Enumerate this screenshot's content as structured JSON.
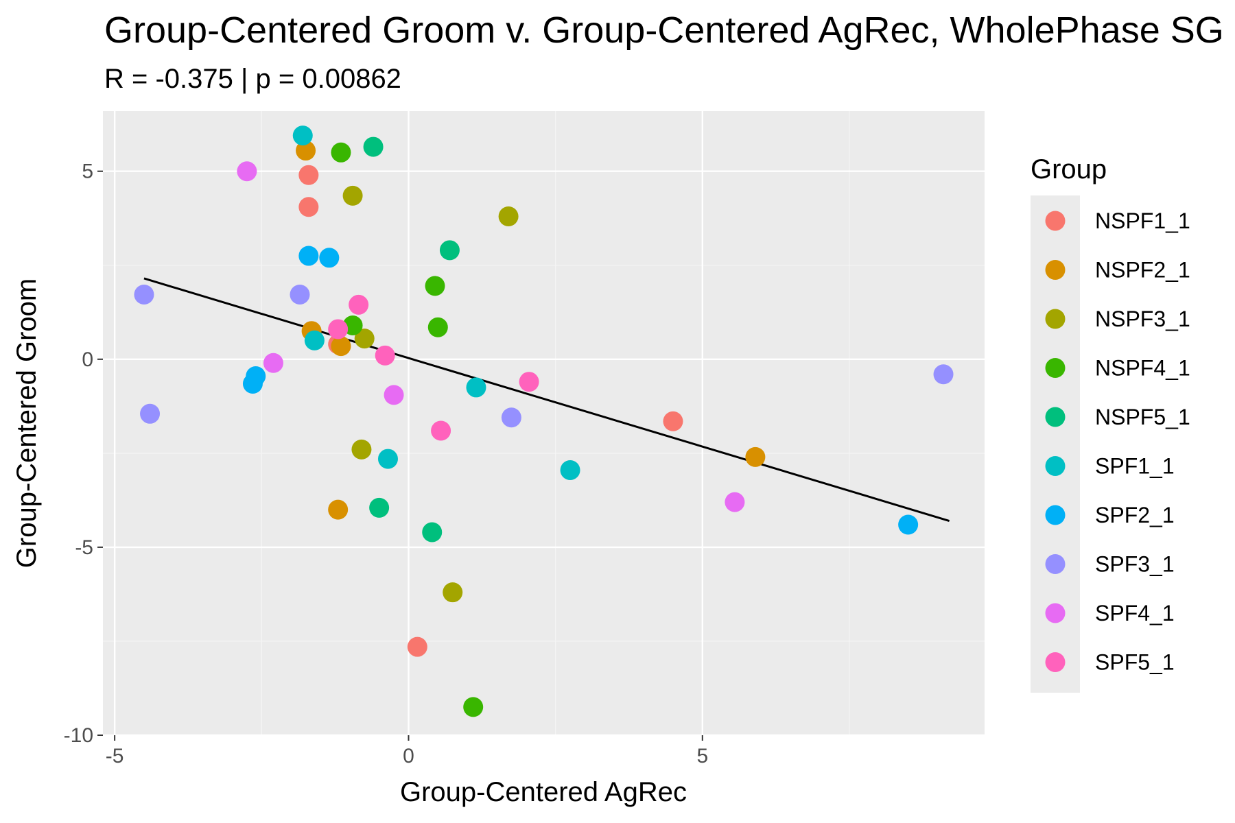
{
  "chart_data": {
    "type": "scatter",
    "title": "Group-Centered Groom v. Group-Centered AgRec, WholePhase SG",
    "subtitle": "R = -0.375 | p = 0.00862",
    "xlabel": "Group-Centered AgRec",
    "ylabel": "Group-Centered Groom",
    "xlim": [
      -5.2,
      9.8
    ],
    "ylim": [
      -10,
      6.6
    ],
    "x_ticks": [
      -5,
      0,
      5
    ],
    "x_tick_labels": [
      "-5",
      "0",
      "5"
    ],
    "y_ticks": [
      -10,
      -5,
      0,
      5
    ],
    "y_tick_labels": [
      "-10",
      "-5",
      "0",
      "5"
    ],
    "grid": true,
    "legend_title": "Group",
    "legend_position": "right",
    "trend_line": {
      "x": [
        -4.5,
        9.2
      ],
      "y": [
        2.15,
        -4.3
      ]
    },
    "series": [
      {
        "name": "NSPF1_1",
        "color": "#F8766D",
        "points": [
          [
            -1.7,
            4.9
          ],
          [
            -1.7,
            4.05
          ],
          [
            -1.2,
            0.4
          ],
          [
            4.5,
            -1.65
          ],
          [
            0.15,
            -7.65
          ]
        ]
      },
      {
        "name": "NSPF2_1",
        "color": "#D89000",
        "points": [
          [
            -1.75,
            5.55
          ],
          [
            -1.65,
            0.75
          ],
          [
            -1.15,
            0.35
          ],
          [
            5.9,
            -2.6
          ],
          [
            -1.2,
            -4.0
          ]
        ]
      },
      {
        "name": "NSPF3_1",
        "color": "#A3A500",
        "points": [
          [
            -0.95,
            4.35
          ],
          [
            1.7,
            3.8
          ],
          [
            -0.75,
            0.55
          ],
          [
            -0.8,
            -2.4
          ],
          [
            0.75,
            -6.2
          ]
        ]
      },
      {
        "name": "NSPF4_1",
        "color": "#39B600",
        "points": [
          [
            -1.15,
            5.5
          ],
          [
            0.45,
            1.95
          ],
          [
            0.5,
            0.85
          ],
          [
            -0.95,
            0.9
          ],
          [
            1.1,
            -9.25
          ]
        ]
      },
      {
        "name": "NSPF5_1",
        "color": "#00BF7D",
        "points": [
          [
            -0.6,
            5.65
          ],
          [
            0.7,
            2.9
          ],
          [
            -0.5,
            -3.95
          ],
          [
            0.4,
            -4.6
          ]
        ]
      },
      {
        "name": "SPF1_1",
        "color": "#00BFC4",
        "points": [
          [
            -1.8,
            5.95
          ],
          [
            -1.6,
            0.5
          ],
          [
            1.15,
            -0.75
          ],
          [
            -0.35,
            -2.65
          ],
          [
            2.75,
            -2.95
          ]
        ]
      },
      {
        "name": "SPF2_1",
        "color": "#00B0F6",
        "points": [
          [
            -1.7,
            2.75
          ],
          [
            -1.35,
            2.7
          ],
          [
            -2.6,
            -0.45
          ],
          [
            -2.65,
            -0.65
          ],
          [
            8.5,
            -4.4
          ]
        ]
      },
      {
        "name": "SPF3_1",
        "color": "#9590FF",
        "points": [
          [
            -4.5,
            1.72
          ],
          [
            -1.85,
            1.72
          ],
          [
            -4.4,
            -1.45
          ],
          [
            1.75,
            -1.55
          ],
          [
            9.1,
            -0.4
          ]
        ]
      },
      {
        "name": "SPF4_1",
        "color": "#E76BF3",
        "points": [
          [
            -2.75,
            5.0
          ],
          [
            -2.3,
            -0.1
          ],
          [
            -0.25,
            -0.95
          ],
          [
            5.55,
            -3.8
          ]
        ]
      },
      {
        "name": "SPF5_1",
        "color": "#FF62BC",
        "points": [
          [
            -0.85,
            1.45
          ],
          [
            -1.2,
            0.8
          ],
          [
            -0.4,
            0.1
          ],
          [
            2.05,
            -0.6
          ],
          [
            0.55,
            -1.9
          ]
        ]
      }
    ]
  }
}
